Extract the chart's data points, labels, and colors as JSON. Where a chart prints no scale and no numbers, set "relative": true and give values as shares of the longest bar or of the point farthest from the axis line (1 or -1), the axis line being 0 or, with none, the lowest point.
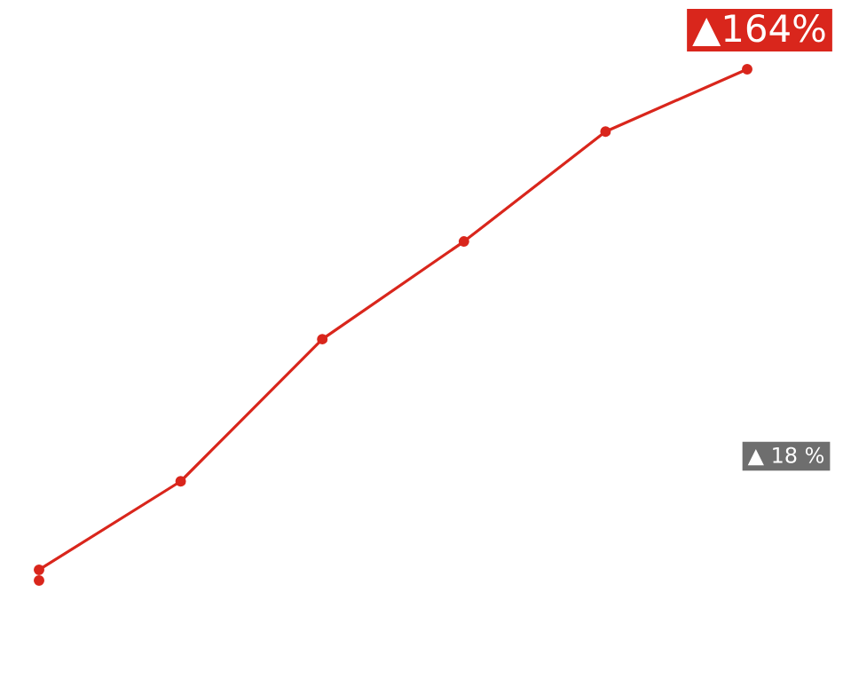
{
  "chart_data": {
    "type": "line",
    "relative": true,
    "marker": "circle",
    "categories": [
      null,
      null,
      null,
      null,
      null,
      null
    ],
    "series": [
      {
        "color": "#d9261c",
        "values": [
          0.021,
          0.194,
          0.472,
          0.663,
          0.878,
          1
        ]
      },
      {
        "color": "#d9261c",
        "values": [
          0,
          null,
          null,
          null,
          null,
          null
        ]
      }
    ],
    "annotations": [
      "▲164%",
      "▲ 18 %"
    ]
  }
}
